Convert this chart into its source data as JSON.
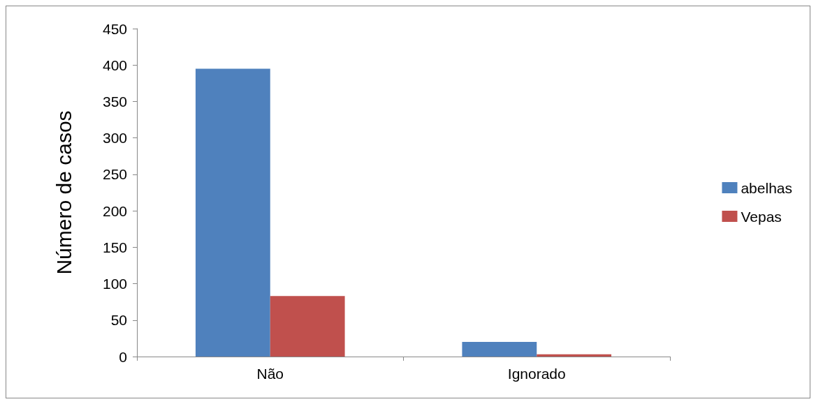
{
  "chart_data": {
    "type": "bar",
    "ylabel": "Número de casos",
    "categories": [
      "Não",
      "Ignorado"
    ],
    "series": [
      {
        "name": "abelhas",
        "color": "#4f81bd",
        "values": [
          395,
          20
        ]
      },
      {
        "name": "Vepas",
        "color": "#c0504d",
        "values": [
          83,
          3
        ]
      }
    ],
    "ylim": [
      0,
      450
    ],
    "yticks": [
      0,
      50,
      100,
      150,
      200,
      250,
      300,
      350,
      400,
      450
    ],
    "grid": false,
    "legend": "right"
  }
}
